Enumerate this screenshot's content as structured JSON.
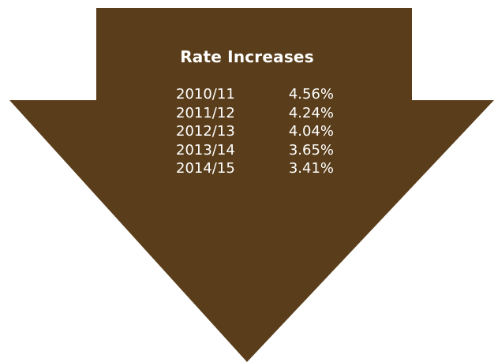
{
  "diagram": {
    "title": "Rate Increases",
    "arrow_color": "#5a3e1b",
    "text_color": "#ffffff",
    "rates": [
      {
        "period": "2010/11",
        "value": "4.56%"
      },
      {
        "period": "2011/12",
        "value": "4.24%"
      },
      {
        "period": "2012/13",
        "value": "4.04%"
      },
      {
        "period": "2013/14",
        "value": "3.65%"
      },
      {
        "period": "2014/15",
        "value": "3.41%"
      }
    ]
  }
}
